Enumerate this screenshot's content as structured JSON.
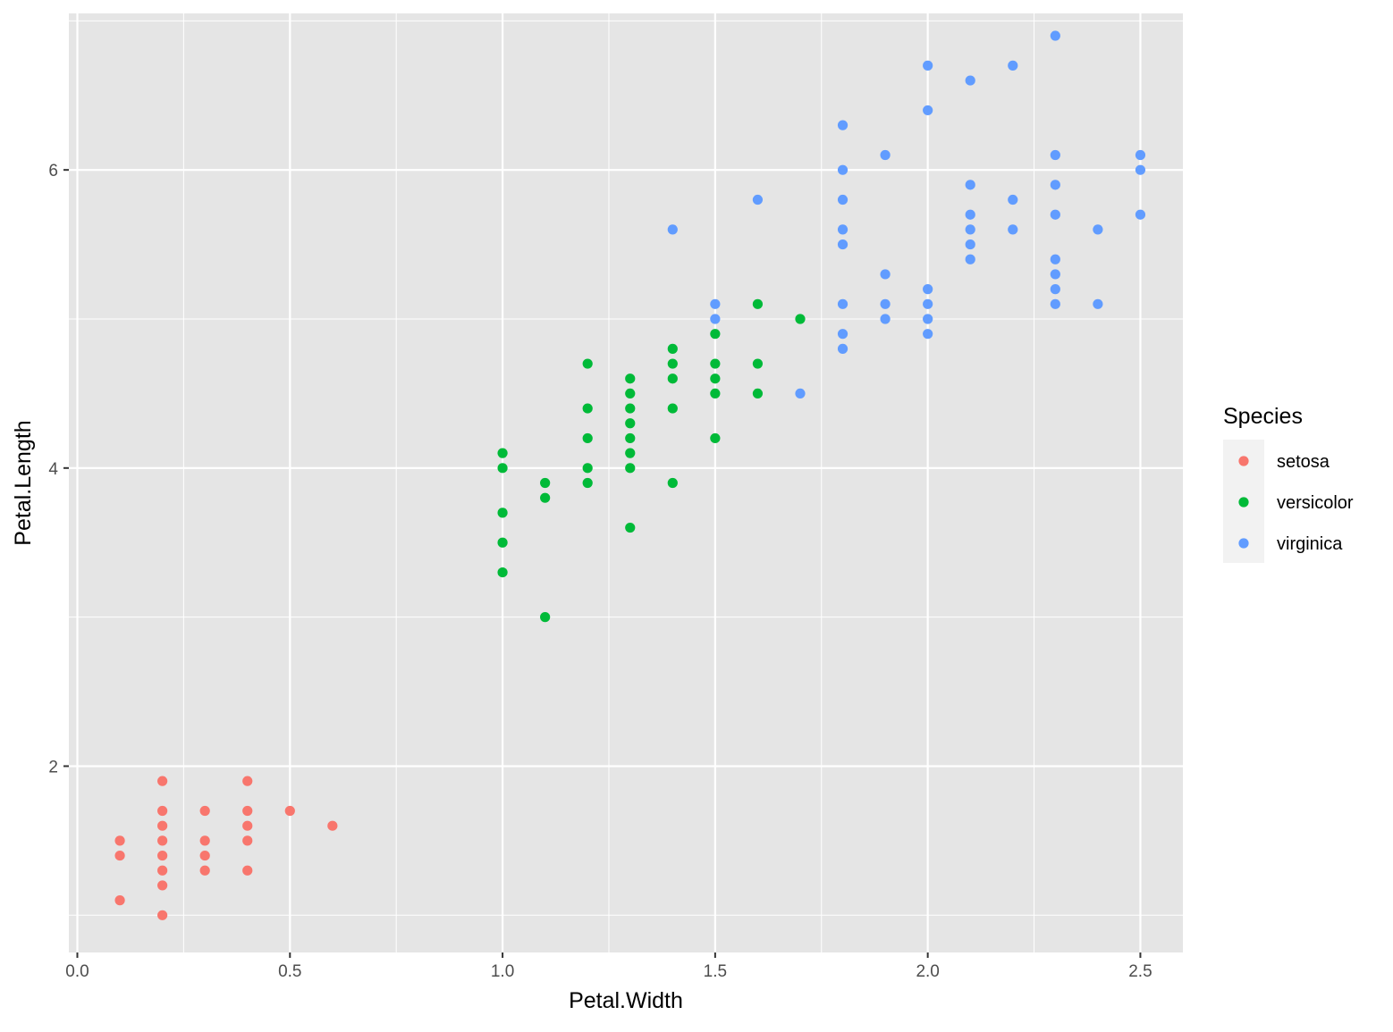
{
  "chart_data": {
    "type": "scatter",
    "xlabel": "Petal.Width",
    "ylabel": "Petal.Length",
    "xlim": [
      -0.02,
      2.6
    ],
    "ylim": [
      0.75,
      7.05
    ],
    "x_ticks": [
      0.0,
      0.5,
      1.0,
      1.5,
      2.0,
      2.5
    ],
    "x_tick_labels": [
      "0.0",
      "0.5",
      "1.0",
      "1.5",
      "2.0",
      "2.5"
    ],
    "y_ticks": [
      2,
      4,
      6
    ],
    "y_tick_labels": [
      "2",
      "4",
      "6"
    ],
    "grid": true,
    "legend": {
      "title": "Species",
      "position": "right"
    },
    "colors": {
      "panel": "#e5e5e5",
      "grid": "#ffffff",
      "tick": "#333333"
    },
    "series": [
      {
        "name": "setosa",
        "color": "#f8766d",
        "points": [
          [
            0.1,
            1.1
          ],
          [
            0.1,
            1.4
          ],
          [
            0.1,
            1.5
          ],
          [
            0.2,
            1.0
          ],
          [
            0.2,
            1.2
          ],
          [
            0.2,
            1.3
          ],
          [
            0.2,
            1.4
          ],
          [
            0.2,
            1.5
          ],
          [
            0.2,
            1.6
          ],
          [
            0.2,
            1.7
          ],
          [
            0.2,
            1.9
          ],
          [
            0.3,
            1.3
          ],
          [
            0.3,
            1.4
          ],
          [
            0.3,
            1.5
          ],
          [
            0.3,
            1.7
          ],
          [
            0.4,
            1.3
          ],
          [
            0.4,
            1.5
          ],
          [
            0.4,
            1.6
          ],
          [
            0.4,
            1.7
          ],
          [
            0.4,
            1.9
          ],
          [
            0.5,
            1.7
          ],
          [
            0.6,
            1.6
          ]
        ]
      },
      {
        "name": "versicolor",
        "color": "#00ba38",
        "points": [
          [
            1.0,
            3.3
          ],
          [
            1.0,
            3.5
          ],
          [
            1.0,
            3.7
          ],
          [
            1.0,
            4.0
          ],
          [
            1.0,
            4.1
          ],
          [
            1.1,
            3.0
          ],
          [
            1.1,
            3.8
          ],
          [
            1.1,
            3.9
          ],
          [
            1.2,
            3.9
          ],
          [
            1.2,
            4.0
          ],
          [
            1.2,
            4.2
          ],
          [
            1.2,
            4.4
          ],
          [
            1.2,
            4.7
          ],
          [
            1.3,
            3.6
          ],
          [
            1.3,
            4.0
          ],
          [
            1.3,
            4.1
          ],
          [
            1.3,
            4.2
          ],
          [
            1.3,
            4.3
          ],
          [
            1.3,
            4.4
          ],
          [
            1.3,
            4.5
          ],
          [
            1.3,
            4.6
          ],
          [
            1.4,
            3.9
          ],
          [
            1.4,
            4.4
          ],
          [
            1.4,
            4.6
          ],
          [
            1.4,
            4.7
          ],
          [
            1.4,
            4.8
          ],
          [
            1.5,
            4.2
          ],
          [
            1.5,
            4.5
          ],
          [
            1.5,
            4.6
          ],
          [
            1.5,
            4.7
          ],
          [
            1.5,
            4.9
          ],
          [
            1.6,
            4.5
          ],
          [
            1.6,
            4.7
          ],
          [
            1.6,
            5.1
          ],
          [
            1.7,
            5.0
          ]
        ]
      },
      {
        "name": "virginica",
        "color": "#619cff",
        "points": [
          [
            1.4,
            5.6
          ],
          [
            1.5,
            5.0
          ],
          [
            1.5,
            5.1
          ],
          [
            1.6,
            5.8
          ],
          [
            1.7,
            4.5
          ],
          [
            1.8,
            4.8
          ],
          [
            1.8,
            4.9
          ],
          [
            1.8,
            5.1
          ],
          [
            1.8,
            5.5
          ],
          [
            1.8,
            5.6
          ],
          [
            1.8,
            5.8
          ],
          [
            1.8,
            6.0
          ],
          [
            1.8,
            6.3
          ],
          [
            1.9,
            5.0
          ],
          [
            1.9,
            5.1
          ],
          [
            1.9,
            5.3
          ],
          [
            1.9,
            6.1
          ],
          [
            2.0,
            4.9
          ],
          [
            2.0,
            5.0
          ],
          [
            2.0,
            5.1
          ],
          [
            2.0,
            5.2
          ],
          [
            2.0,
            6.4
          ],
          [
            2.0,
            6.7
          ],
          [
            2.1,
            5.4
          ],
          [
            2.1,
            5.5
          ],
          [
            2.1,
            5.6
          ],
          [
            2.1,
            5.7
          ],
          [
            2.1,
            5.9
          ],
          [
            2.1,
            6.6
          ],
          [
            2.2,
            5.6
          ],
          [
            2.2,
            5.8
          ],
          [
            2.2,
            6.7
          ],
          [
            2.3,
            5.1
          ],
          [
            2.3,
            5.2
          ],
          [
            2.3,
            5.3
          ],
          [
            2.3,
            5.4
          ],
          [
            2.3,
            5.7
          ],
          [
            2.3,
            5.9
          ],
          [
            2.3,
            6.1
          ],
          [
            2.3,
            6.9
          ],
          [
            2.4,
            5.1
          ],
          [
            2.4,
            5.6
          ],
          [
            2.5,
            5.7
          ],
          [
            2.5,
            6.0
          ],
          [
            2.5,
            6.1
          ]
        ]
      }
    ]
  }
}
